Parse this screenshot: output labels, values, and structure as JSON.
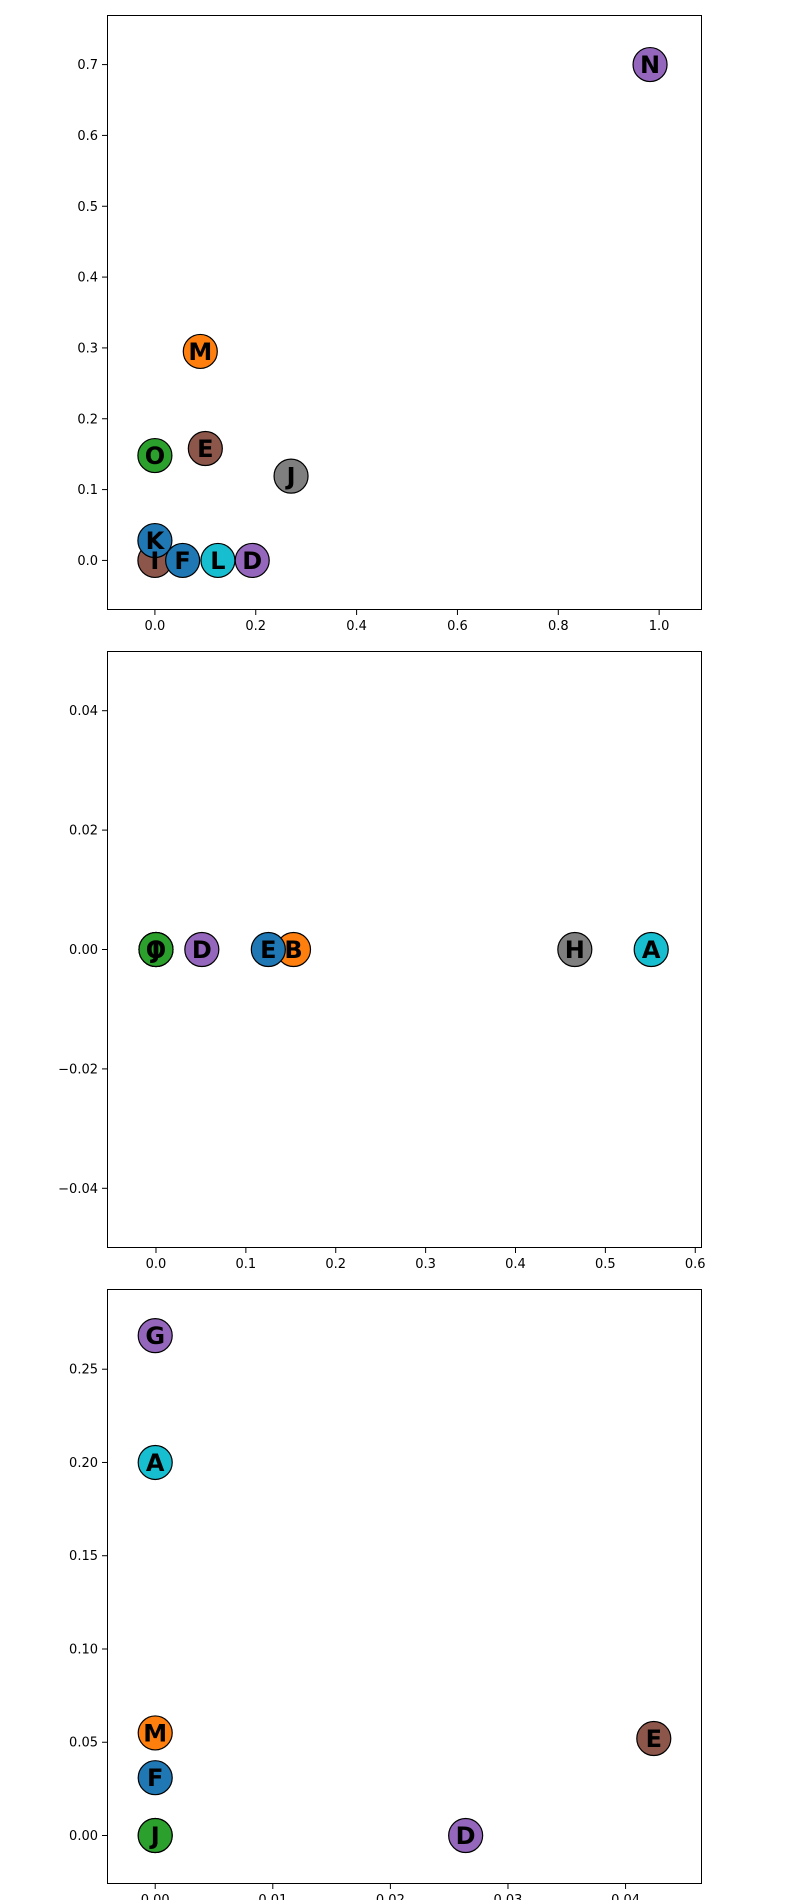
{
  "chart_data": [
    {
      "type": "scatter",
      "title": "",
      "xlabel": "",
      "ylabel": "",
      "xlim": [
        -0.095,
        1.085
      ],
      "ylim": [
        -0.07,
        0.77
      ],
      "xticks": [
        0.0,
        0.2,
        0.4,
        0.6,
        0.8,
        1.0
      ],
      "xtick_labels": [
        "0.0",
        "0.2",
        "0.4",
        "0.6",
        "0.8",
        "1.0"
      ],
      "yticks": [
        0.0,
        0.1,
        0.2,
        0.3,
        0.4,
        0.5,
        0.6,
        0.7
      ],
      "ytick_labels": [
        "0.0",
        "0.1",
        "0.2",
        "0.3",
        "0.4",
        "0.5",
        "0.6",
        "0.7"
      ],
      "grid": false,
      "points": [
        {
          "label": "I",
          "x": 0.0,
          "y": 0.0,
          "color": "#8c564b"
        },
        {
          "label": "K",
          "x": 0.0,
          "y": 0.028,
          "color": "#1f77b4"
        },
        {
          "label": "F",
          "x": 0.055,
          "y": 0.0,
          "color": "#1f77b4"
        },
        {
          "label": "L",
          "x": 0.125,
          "y": 0.0,
          "color": "#17becf"
        },
        {
          "label": "D",
          "x": 0.193,
          "y": 0.0,
          "color": "#9467bd"
        },
        {
          "label": "O",
          "x": 0.0,
          "y": 0.148,
          "color": "#2ca02c"
        },
        {
          "label": "E",
          "x": 0.1,
          "y": 0.158,
          "color": "#8c564b"
        },
        {
          "label": "J",
          "x": 0.27,
          "y": 0.119,
          "color": "#7f7f7f"
        },
        {
          "label": "M",
          "x": 0.09,
          "y": 0.295,
          "color": "#ff7f0e"
        },
        {
          "label": "N",
          "x": 0.982,
          "y": 0.7,
          "color": "#9467bd"
        }
      ]
    },
    {
      "type": "scatter",
      "title": "",
      "xlabel": "",
      "ylabel": "",
      "xlim": [
        -0.0545,
        0.6075
      ],
      "ylim": [
        -0.05,
        0.05
      ],
      "xticks": [
        0.0,
        0.1,
        0.2,
        0.3,
        0.4,
        0.5,
        0.6
      ],
      "xtick_labels": [
        "0.0",
        "0.1",
        "0.2",
        "0.3",
        "0.4",
        "0.5",
        "0.6"
      ],
      "yticks": [
        -0.04,
        -0.02,
        0.0,
        0.02,
        0.04
      ],
      "ytick_labels": [
        "−0.04",
        "−0.02",
        "0.00",
        "0.02",
        "0.04"
      ],
      "grid": false,
      "points": [
        {
          "label": "O",
          "x": 0.0,
          "y": 0.0,
          "color": "#2ca02c"
        },
        {
          "label": "J",
          "x": 0.0,
          "y": 0.0,
          "color": "#2ca02c"
        },
        {
          "label": "I",
          "x": 0.0,
          "y": 0.0,
          "color": "#2ca02c"
        },
        {
          "label": "D",
          "x": 0.051,
          "y": 0.0,
          "color": "#9467bd"
        },
        {
          "label": "B",
          "x": 0.153,
          "y": 0.0,
          "color": "#ff7f0e"
        },
        {
          "label": "E",
          "x": 0.125,
          "y": 0.0,
          "color": "#1f77b4"
        },
        {
          "label": "H",
          "x": 0.466,
          "y": 0.0,
          "color": "#7f7f7f"
        },
        {
          "label": "A",
          "x": 0.551,
          "y": 0.0,
          "color": "#17becf"
        }
      ]
    },
    {
      "type": "scatter",
      "title": "",
      "xlabel": "",
      "ylabel": "",
      "xlim": [
        -0.0041,
        0.0465
      ],
      "ylim": [
        -0.026,
        0.293
      ],
      "xticks": [
        0.0,
        0.01,
        0.02,
        0.03,
        0.04
      ],
      "xtick_labels": [
        "0.00",
        "0.01",
        "0.02",
        "0.03",
        "0.04"
      ],
      "yticks": [
        0.0,
        0.05,
        0.1,
        0.15,
        0.2,
        0.25
      ],
      "ytick_labels": [
        "0.00",
        "0.05",
        "0.10",
        "0.15",
        "0.20",
        "0.25"
      ],
      "grid": false,
      "points": [
        {
          "label": "G",
          "x": 0.0,
          "y": 0.268,
          "color": "#9467bd"
        },
        {
          "label": "A",
          "x": 0.0,
          "y": 0.2,
          "color": "#17becf"
        },
        {
          "label": "M",
          "x": 0.0,
          "y": 0.055,
          "color": "#ff7f0e"
        },
        {
          "label": "F",
          "x": 0.0,
          "y": 0.031,
          "color": "#1f77b4"
        },
        {
          "label": "J",
          "x": 0.0,
          "y": 0.0,
          "color": "#2ca02c"
        },
        {
          "label": "I",
          "x": 0.0,
          "y": 0.0,
          "color": "#2ca02c"
        },
        {
          "label": "D",
          "x": 0.0264,
          "y": 0.0,
          "color": "#9467bd"
        },
        {
          "label": "E",
          "x": 0.0424,
          "y": 0.052,
          "color": "#8c564b"
        }
      ]
    }
  ]
}
